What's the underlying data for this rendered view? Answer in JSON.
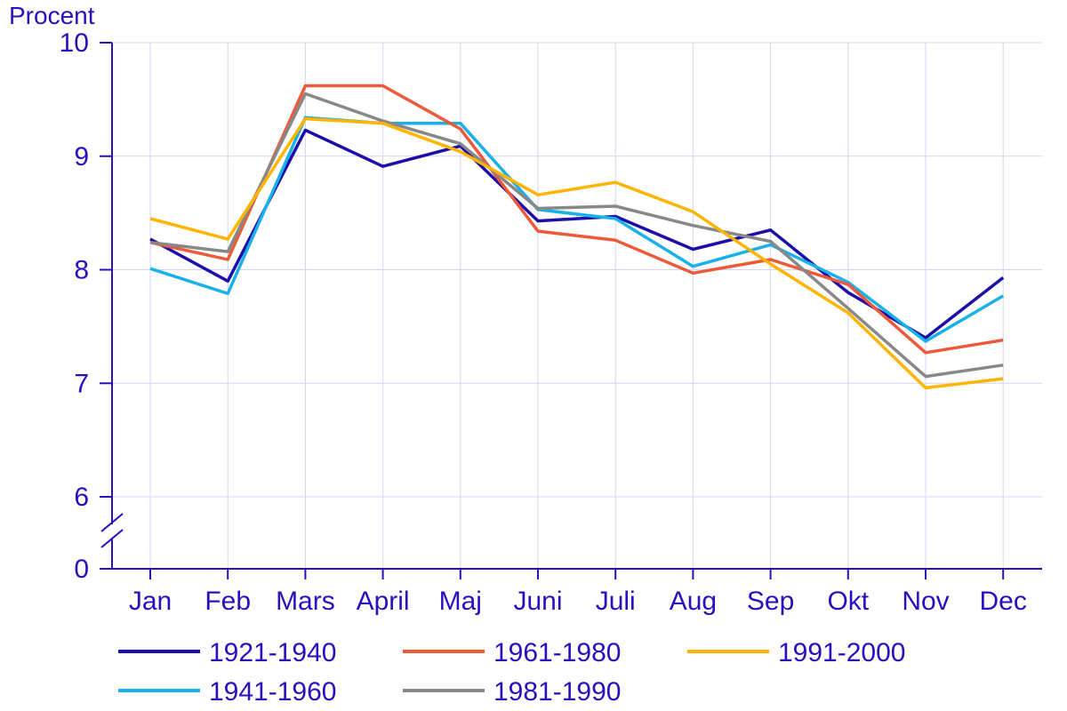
{
  "chart_data": {
    "type": "line",
    "ylabel": "Procent",
    "xlabel": "",
    "title": "",
    "categories": [
      "Jan",
      "Feb",
      "Mars",
      "April",
      "Maj",
      "Juni",
      "Juli",
      "Aug",
      "Sep",
      "Okt",
      "Nov",
      "Dec"
    ],
    "y_ticks": [
      "10",
      "9",
      "8",
      "7",
      "6",
      "0"
    ],
    "ylim": [
      6,
      10
    ],
    "y_break": {
      "below": 6,
      "label": "0"
    },
    "grid": true,
    "legend_placement": "bottom",
    "axis_color": "#2a0fbf",
    "grid_color": "#d4d4f2",
    "series": [
      {
        "name": "1921-1940",
        "color": "#1c0ea8",
        "values": [
          8.27,
          7.9,
          9.23,
          8.91,
          9.09,
          8.43,
          8.47,
          8.18,
          8.35,
          7.8,
          7.4,
          7.93
        ]
      },
      {
        "name": "1941-1960",
        "color": "#1ab0e8",
        "values": [
          8.01,
          7.79,
          9.34,
          9.29,
          9.29,
          8.53,
          8.45,
          8.03,
          8.22,
          7.89,
          7.37,
          7.77
        ]
      },
      {
        "name": "1961-1980",
        "color": "#ec5a3a",
        "values": [
          8.24,
          8.09,
          9.62,
          9.62,
          9.24,
          8.34,
          8.26,
          7.97,
          8.09,
          7.87,
          7.27,
          7.38
        ]
      },
      {
        "name": "1981-1990",
        "color": "#888888",
        "values": [
          8.24,
          8.16,
          9.55,
          9.31,
          9.11,
          8.54,
          8.56,
          8.39,
          8.25,
          7.66,
          7.06,
          7.16
        ]
      },
      {
        "name": "1991-2000",
        "color": "#ffb400",
        "values": [
          8.45,
          8.27,
          9.33,
          9.29,
          9.04,
          8.66,
          8.77,
          8.51,
          8.05,
          7.62,
          6.96,
          7.04
        ]
      }
    ]
  }
}
